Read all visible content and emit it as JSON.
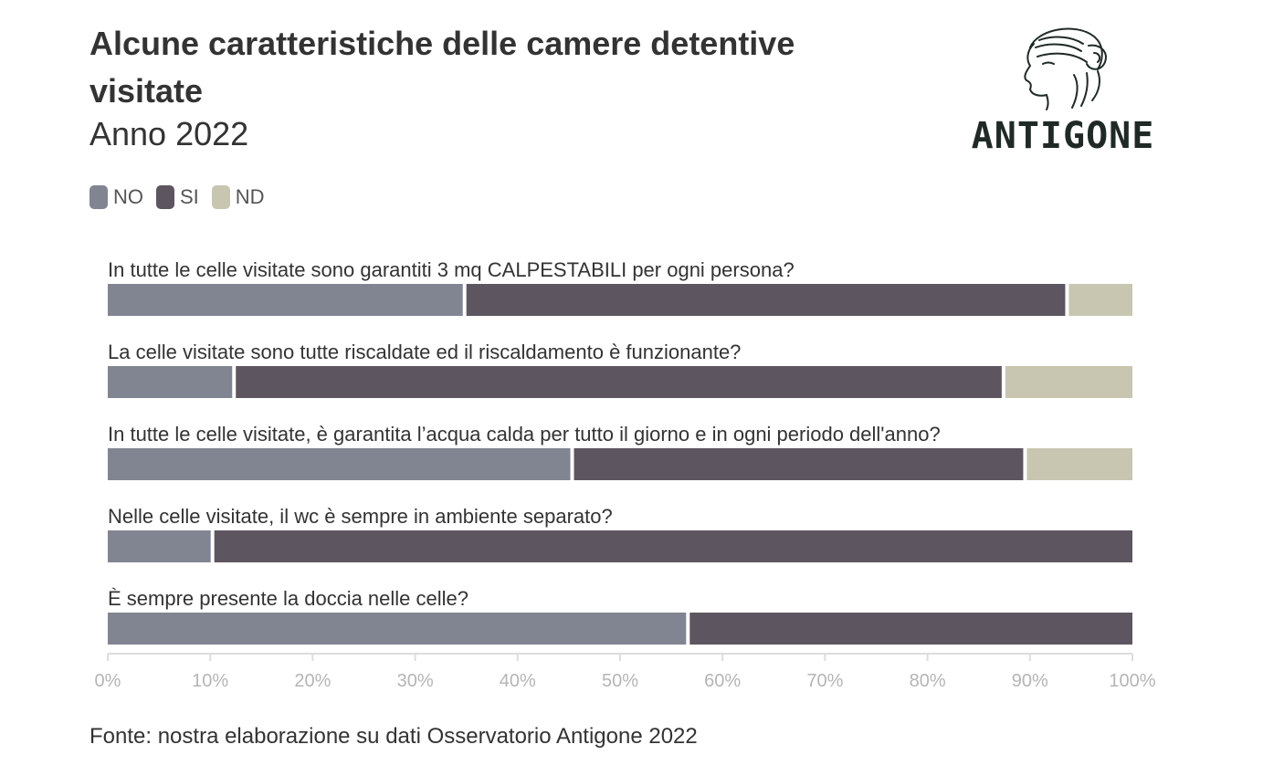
{
  "title": "Alcune caratteristiche delle camere detentive visitate",
  "subtitle": "Anno 2022",
  "logo": {
    "text": "ANTIGONE"
  },
  "source": "Fonte: nostra elaborazione su dati Osservatorio Antigone 2022",
  "colors": {
    "NO": "#818591",
    "SI": "#5d555f",
    "ND": "#c8c6b0"
  },
  "chart_data": {
    "type": "bar",
    "orientation": "horizontal",
    "stacked": true,
    "legend_position": "top-left",
    "categories": [
      "In tutte le celle visitate sono garantiti 3 mq CALPESTABILI per ogni persona?",
      "La celle visitate sono tutte riscaldate ed il riscaldamento è funzionante?",
      "In tutte le celle visitate, è garantita l’acqua calda per tutto il giorno e in ogni periodo dell'anno?",
      "Nelle celle visitate, il wc è sempre in ambiente separato?",
      "È sempre presente la doccia nelle celle?"
    ],
    "series": [
      {
        "name": "NO",
        "values": [
          35,
          12.5,
          45.5,
          10.4,
          56.8
        ]
      },
      {
        "name": "SI",
        "values": [
          58.8,
          75.1,
          44.2,
          89.6,
          43.2
        ]
      },
      {
        "name": "ND",
        "values": [
          6.2,
          12.4,
          10.3,
          0,
          0
        ]
      }
    ],
    "xlim": [
      0,
      100
    ],
    "xticks": [
      "0%",
      "10%",
      "20%",
      "30%",
      "40%",
      "50%",
      "60%",
      "70%",
      "80%",
      "90%",
      "100%"
    ]
  }
}
